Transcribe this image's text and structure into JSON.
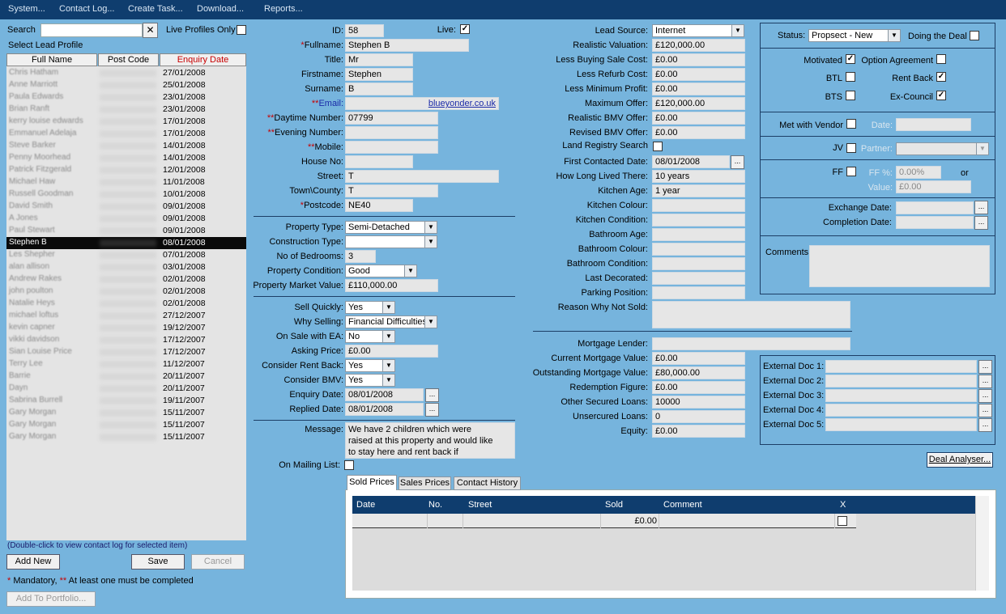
{
  "menu": [
    "System...",
    "Contact Log...",
    "Create Task...",
    "Download...",
    "Reports..."
  ],
  "left": {
    "search_label": "Search",
    "search_value": "",
    "clear_icon": "✕",
    "live_only_label": "Live Profiles Only",
    "select_label": "Select Lead Profile",
    "col_fullname": "Full Name",
    "col_postcode": "Post Code",
    "col_enquiry": "Enquiry Date",
    "rows": [
      {
        "name": "Chris Hatham",
        "date": "27/01/2008"
      },
      {
        "name": "Anne Marriott",
        "date": "25/01/2008"
      },
      {
        "name": "Paula Edwards",
        "date": "23/01/2008"
      },
      {
        "name": "Brian Ranft",
        "date": "23/01/2008"
      },
      {
        "name": "kerry louise edwards",
        "date": "17/01/2008"
      },
      {
        "name": "Emmanuel Adelaja",
        "date": "17/01/2008"
      },
      {
        "name": "Steve Barker",
        "date": "14/01/2008"
      },
      {
        "name": "Penny Moorhead",
        "date": "14/01/2008"
      },
      {
        "name": "Patrick Fitzgerald",
        "date": "12/01/2008"
      },
      {
        "name": "Michael Haw",
        "date": "11/01/2008"
      },
      {
        "name": "Russell Goodman",
        "date": "10/01/2008"
      },
      {
        "name": "David Smith",
        "date": "09/01/2008"
      },
      {
        "name": "A Jones",
        "date": "09/01/2008"
      },
      {
        "name": "Paul Stewart",
        "date": "09/01/2008"
      },
      {
        "name": "Stephen B",
        "date": "08/01/2008"
      },
      {
        "name": "Les Shepher",
        "date": "07/01/2008"
      },
      {
        "name": "alan allison",
        "date": "03/01/2008"
      },
      {
        "name": "Andrew Rakes",
        "date": "02/01/2008"
      },
      {
        "name": "john poulton",
        "date": "02/01/2008"
      },
      {
        "name": "Natalie Heys",
        "date": "02/01/2008"
      },
      {
        "name": "michael loftus",
        "date": "27/12/2007"
      },
      {
        "name": "kevin capner",
        "date": "19/12/2007"
      },
      {
        "name": "vikki davidson",
        "date": "17/12/2007"
      },
      {
        "name": "Sian Louise Price",
        "date": "17/12/2007"
      },
      {
        "name": "Terry Lee",
        "date": "11/12/2007"
      },
      {
        "name": "Barrie",
        "date": "20/11/2007"
      },
      {
        "name": "Dayn",
        "date": "20/11/2007"
      },
      {
        "name": "Sabrina Burrell",
        "date": "19/11/2007"
      },
      {
        "name": "Gary Morgan",
        "date": "15/11/2007"
      },
      {
        "name": "Gary Morgan",
        "date": "15/11/2007"
      },
      {
        "name": "Gary Morgan",
        "date": "15/11/2007"
      }
    ],
    "hint": "(Double-click to view contact log for selected item)",
    "add_new": "Add New",
    "save": "Save",
    "cancel": "Cancel",
    "mandatory_star": "*",
    "mandatory_text": " Mandatory, ",
    "atleast_star": "**",
    "atleast_text": " At least one must be completed",
    "add_portfolio": "Add To Portfolio..."
  },
  "contact": {
    "id_label": "ID:",
    "id": "58",
    "live_label": "Live:",
    "fullname_label": "Fullname:",
    "fullname": "Stephen B",
    "title_label": "Title:",
    "title": "Mr",
    "firstname_label": "Firstname:",
    "firstname": "Stephen",
    "surname_label": "Surname:",
    "surname": "B",
    "email_label": "Email:",
    "email": "blueyonder.co.uk",
    "daytime_label": "Daytime Number:",
    "daytime": "07799",
    "evening_label": "Evening Number:",
    "evening": "",
    "mobile_label": "Mobile:",
    "mobile": "",
    "houseno_label": "House No:",
    "houseno": "",
    "street_label": "Street:",
    "street": "T",
    "town_label": "Town\\County:",
    "town": "T",
    "postcode_label": "Postcode:",
    "postcode": "NE40",
    "req1": "*",
    "req2": "**"
  },
  "property": {
    "type_label": "Property Type:",
    "type": "Semi-Detached",
    "construction_label": "Construction Type:",
    "construction": "",
    "bedrooms_label": "No of Bedrooms:",
    "bedrooms": "3",
    "condition_label": "Property Condition:",
    "condition": "Good",
    "market_label": "Property Market Value:",
    "market": "£110,000.00"
  },
  "selling": {
    "quickly_label": "Sell Quickly:",
    "quickly": "Yes",
    "why_label": "Why Selling:",
    "why": "Financial Difficulties",
    "ea_label": "On Sale with EA:",
    "ea": "No",
    "asking_label": "Asking Price:",
    "asking": "£0.00",
    "rentback_label": "Consider Rent Back:",
    "rentback": "Yes",
    "bmv_label": "Consider BMV:",
    "bmv": "Yes",
    "enquiry_label": "Enquiry Date:",
    "enquiry": "08/01/2008",
    "replied_label": "Replied Date:",
    "replied": "08/01/2008",
    "message_label": "Message:",
    "message_1": "We have 2 children which were",
    "message_2": "raised at this property and would like",
    "message_3": "to stay here and rent back if",
    "mailing_label": "On Mailing List:",
    "ellipsis": "..."
  },
  "valuation": {
    "source_label": "Lead Source:",
    "source": "Internet",
    "realistic_label": "Realistic Valuation:",
    "realistic": "£120,000.00",
    "lessbuying_label": "Less Buying Sale Cost:",
    "lessbuying": "£0.00",
    "lessrefurb_label": "Less Refurb Cost:",
    "lessrefurb": "£0.00",
    "lessmin_label": "Less Minimum Profit:",
    "lessmin": "£0.00",
    "maxoffer_label": "Maximum Offer:",
    "maxoffer": "£120,000.00",
    "realbmv_label": "Realistic BMV Offer:",
    "realbmv": "£0.00",
    "revbmv_label": "Revised BMV Offer:",
    "revbmv": "£0.00",
    "landreg_label": "Land Registry Search",
    "firstcontact_label": "First Contacted Date:",
    "firstcontact": "08/01/2008",
    "howlong_label": "How Long Lived There:",
    "howlong": "10 years",
    "kitchenage_label": "Kitchen Age:",
    "kitchenage": "1 year",
    "kitchencolour_label": "Kitchen Colour:",
    "kitchencolour": "",
    "kitchencond_label": "Kitchen Condition:",
    "kitchencond": "",
    "bathage_label": "Bathroom Age:",
    "bathage": "",
    "bathcolour_label": "Bathroom Colour:",
    "bathcolour": "",
    "bathcond_label": "Bathroom Condition:",
    "bathcond": "",
    "lastdec_label": "Last Decorated:",
    "lastdec": "",
    "parking_label": "Parking Position:",
    "parking": "",
    "notsold_label": "Reason Why Not Sold:",
    "notsold": ""
  },
  "mortgage": {
    "lender_label": "Mortgage Lender:",
    "lender": "",
    "current_label": "Current Mortgage Value:",
    "current": "£0.00",
    "outstanding_label": "Outstanding Mortgage Value:",
    "outstanding": "£80,000.00",
    "redemption_label": "Redemption Figure:",
    "redemption": "£0.00",
    "secured_label": "Other Secured Loans:",
    "secured": "10000",
    "unsecured_label": "Unsercured Loans:",
    "unsecured": "0",
    "equity_label": "Equity:",
    "equity": "£0.00"
  },
  "status": {
    "status_label": "Status:",
    "status": "Propsect - New",
    "doing_label": "Doing the Deal",
    "motivated_label": "Motivated",
    "option_label": "Option Agreement",
    "btl_label": "BTL",
    "rentback_label": "Rent Back",
    "bts_label": "BTS",
    "excouncil_label": "Ex-Council",
    "met_label": "Met with Vendor",
    "date_label": "Date:",
    "date": "",
    "jv_label": "JV",
    "partner_label": "Partner:",
    "partner": "",
    "ff_label": "FF",
    "ffpct_label": "FF %:",
    "ffpct": "0.00%",
    "or_label": "or",
    "value_label": "Value:",
    "value": "£0.00",
    "exchange_label": "Exchange Date:",
    "exchange": "",
    "completion_label": "Completion Date:",
    "completion": "",
    "comments_label": "Comments:",
    "comments": ""
  },
  "docs": {
    "doc1": "External Doc 1:",
    "doc2": "External Doc 2:",
    "doc3": "External Doc 3:",
    "doc4": "External Doc 4:",
    "doc5": "External Doc 5:",
    "deal_analyser": "Deal Analyser..."
  },
  "tabs": {
    "sold": "Sold Prices",
    "sales": "Sales Prices",
    "history": "Contact History"
  },
  "grid": {
    "date": "Date",
    "no": "No.",
    "street": "Street",
    "sold": "Sold",
    "comment": "Comment",
    "x": "X",
    "row_sold": "£0.00"
  },
  "checks": {
    "tick": "✓",
    "arrow": "▼"
  }
}
